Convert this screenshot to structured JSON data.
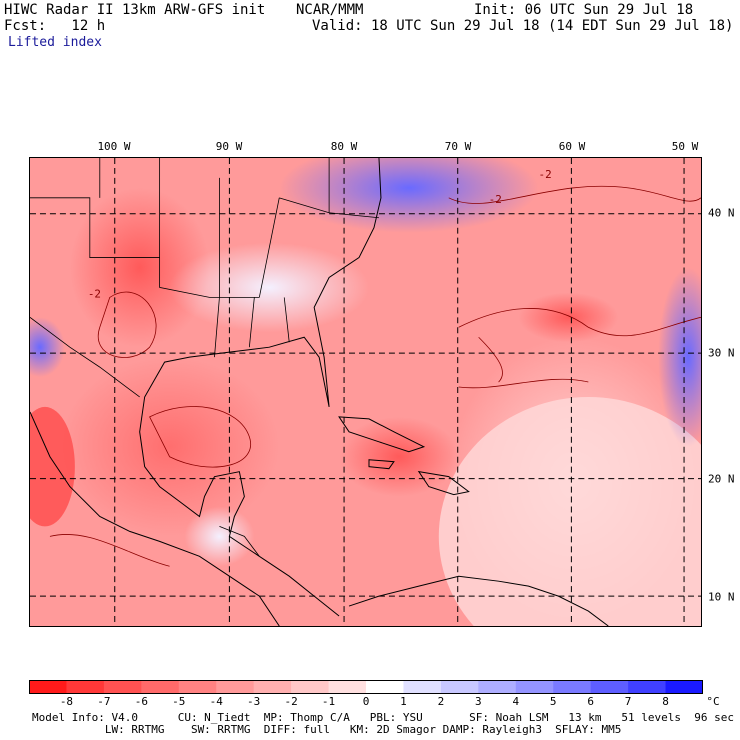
{
  "header": {
    "title": "HIWC Radar II 13km ARW-GFS init",
    "org": "NCAR/MMM",
    "init": "Init: 06 UTC Sun 29 Jul 18",
    "fcst": "Fcst:   12 h",
    "valid": "Valid: 18 UTC Sun 29 Jul 18 (14 EDT Sun 29 Jul 18)",
    "field": "Lifted index"
  },
  "map": {
    "lon_labels": [
      "100 W",
      "90 W",
      "80 W",
      "70 W",
      "60 W",
      "50 W"
    ],
    "lat_labels": [
      "40 N",
      "30 N",
      "20 N",
      "10 N"
    ],
    "contour_labels": [
      "-2",
      "-2",
      "-2"
    ]
  },
  "colorbar": {
    "labels": [
      "-8",
      "-7",
      "-6",
      "-5",
      "-4",
      "-3",
      "-2",
      "-1",
      "0",
      "1",
      "2",
      "3",
      "4",
      "5",
      "6",
      "7",
      "8"
    ],
    "unit": "°C",
    "colors": [
      "#ff1a1a",
      "#ff3838",
      "#ff5252",
      "#ff6a6a",
      "#ff8282",
      "#ff9a9a",
      "#ffb0b0",
      "#ffc8c8",
      "#ffe0e0",
      "#ffffff",
      "#e0e0ff",
      "#c8c8ff",
      "#aeaeff",
      "#9494ff",
      "#7a7aff",
      "#5e5eff",
      "#4040ff",
      "#1a1aff"
    ]
  },
  "footer": {
    "line1": "Model Info: V4.0      CU: N_Tiedt  MP: Thomp C/A   PBL: YSU       SF: Noah LSM   13 km   51 levels  96 sec",
    "line2": "           LW: RRTMG    SW: RRTMG  DIFF: full   KM: 2D Smagor DAMP: Rayleigh3  SFLAY: MM5"
  }
}
